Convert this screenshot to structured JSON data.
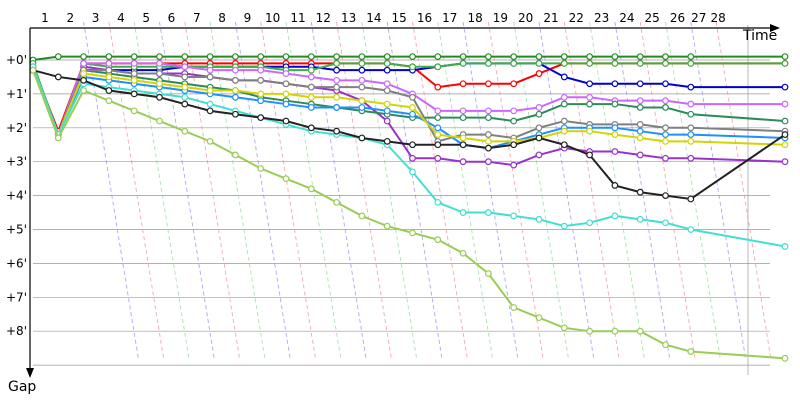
{
  "chart_data": {
    "type": "line",
    "xlabel": "Time",
    "ylabel": "Gap",
    "x_ticks": [
      "1",
      "2",
      "3",
      "4",
      "5",
      "6",
      "7",
      "8",
      "9",
      "10",
      "11",
      "12",
      "13",
      "14",
      "15",
      "16",
      "17",
      "18",
      "19",
      "20",
      "21",
      "22",
      "23",
      "24",
      "25",
      "26",
      "27",
      "28"
    ],
    "y_ticks": [
      "+0'",
      "+1'",
      "+2'",
      "+3'",
      "+4'",
      "+5'",
      "+6'",
      "+7'",
      "+8'"
    ],
    "x_range": [
      1,
      28
    ],
    "y_range": [
      0,
      9
    ],
    "grid": true,
    "colors": {
      "grid": "#9a9a9a",
      "axis": "#000000",
      "pit_lines": [
        "#f08c8c",
        "#8fd98f",
        "#8c8cf0"
      ]
    },
    "series": [
      {
        "color": "#228B22",
        "values": [
          0,
          -0.1,
          -0.1,
          -0.1,
          -0.1,
          -0.1,
          -0.1,
          -0.1,
          -0.1,
          -0.1,
          -0.1,
          -0.1,
          -0.1,
          -0.1,
          -0.1,
          -0.1,
          -0.1,
          -0.1,
          -0.1,
          -0.1,
          -0.1,
          -0.1,
          -0.1,
          -0.1,
          -0.1,
          -0.1,
          -0.1,
          -0.1
        ]
      },
      {
        "color": "#ff0000",
        "values": [
          0.2,
          2.1,
          0.1,
          0.1,
          0.1,
          0.1,
          0.1,
          0.1,
          0.1,
          0.1,
          0.1,
          0.1,
          0.1,
          0.1,
          0.1,
          0.2,
          0.8,
          0.7,
          0.7,
          0.7,
          0.4,
          0.1,
          0.1,
          0.1,
          0.1,
          0.1,
          0.1,
          0.1
        ]
      },
      {
        "color": "#0000cc",
        "values": [
          0.2,
          2.2,
          0.3,
          0.3,
          0.3,
          0.3,
          0.2,
          0.2,
          0.2,
          0.2,
          0.2,
          0.2,
          0.3,
          0.3,
          0.3,
          0.3,
          0.2,
          0.1,
          0.1,
          0.1,
          0.1,
          0.5,
          0.7,
          0.7,
          0.7,
          0.7,
          0.8,
          0.8
        ]
      },
      {
        "color": "#3cb043",
        "values": [
          0.1,
          2.2,
          0.1,
          0.2,
          0.2,
          0.2,
          0.2,
          0.2,
          0.2,
          0.2,
          0.3,
          0.3,
          0.1,
          0.1,
          0.1,
          0.2,
          0.2,
          0.1,
          0.1,
          0.1,
          0.1,
          0.1,
          0.1,
          0.1,
          0.1,
          0.1,
          0.1,
          0.1
        ]
      },
      {
        "color": "#9932cc",
        "values": [
          0.2,
          2.2,
          0.2,
          0.3,
          0.4,
          0.4,
          0.4,
          0.5,
          0.6,
          0.6,
          0.7,
          0.8,
          0.9,
          1.2,
          1.8,
          2.9,
          2.9,
          3.0,
          3.0,
          3.1,
          2.8,
          2.6,
          2.7,
          2.7,
          2.8,
          2.9,
          2.9,
          3.0
        ]
      },
      {
        "color": "#cc66ff",
        "values": [
          0.2,
          2.2,
          0.1,
          0.1,
          0.1,
          0.1,
          0.2,
          0.3,
          0.3,
          0.3,
          0.4,
          0.5,
          0.6,
          0.6,
          0.7,
          1.0,
          1.5,
          1.5,
          1.5,
          1.5,
          1.4,
          1.1,
          1.1,
          1.2,
          1.2,
          1.2,
          1.3,
          1.3
        ]
      },
      {
        "color": "#2e8b57",
        "values": [
          0.2,
          2.2,
          0.3,
          0.4,
          0.5,
          0.6,
          0.7,
          0.8,
          0.9,
          1.1,
          1.2,
          1.3,
          1.4,
          1.5,
          1.6,
          1.7,
          1.7,
          1.7,
          1.7,
          1.8,
          1.6,
          1.3,
          1.3,
          1.3,
          1.4,
          1.4,
          1.6,
          1.8
        ]
      },
      {
        "color": "#808080",
        "values": [
          0.2,
          2.2,
          0.3,
          0.3,
          0.4,
          0.4,
          0.5,
          0.5,
          0.6,
          0.6,
          0.7,
          0.8,
          0.8,
          0.8,
          0.9,
          1.1,
          2.4,
          2.2,
          2.2,
          2.3,
          2.0,
          1.8,
          1.9,
          1.9,
          1.9,
          2.0,
          2.0,
          2.1
        ]
      },
      {
        "color": "#1e90ff",
        "values": [
          0.2,
          2.2,
          0.5,
          0.6,
          0.7,
          0.8,
          0.9,
          1.0,
          1.1,
          1.2,
          1.3,
          1.4,
          1.4,
          1.4,
          1.5,
          1.6,
          2.0,
          2.5,
          2.6,
          2.4,
          2.2,
          2.0,
          2.0,
          2.0,
          2.1,
          2.2,
          2.2,
          2.3
        ]
      },
      {
        "color": "#d4d400",
        "values": [
          0.2,
          2.2,
          0.4,
          0.5,
          0.6,
          0.7,
          0.8,
          0.9,
          0.9,
          1.0,
          1.0,
          1.1,
          1.1,
          1.2,
          1.3,
          1.4,
          2.2,
          2.3,
          2.4,
          2.4,
          2.3,
          2.1,
          2.1,
          2.2,
          2.3,
          2.4,
          2.4,
          2.5
        ]
      },
      {
        "color": "#40e0d0",
        "values": [
          0.2,
          2.2,
          0.7,
          0.8,
          0.9,
          1.0,
          1.1,
          1.3,
          1.5,
          1.7,
          1.9,
          2.1,
          2.2,
          2.3,
          2.5,
          3.3,
          4.2,
          4.5,
          4.5,
          4.6,
          4.7,
          4.9,
          4.8,
          4.6,
          4.7,
          4.8,
          5.0,
          5.5
        ]
      },
      {
        "color": "#222222",
        "values": [
          0.3,
          0.5,
          0.6,
          0.9,
          1.0,
          1.1,
          1.3,
          1.5,
          1.6,
          1.7,
          1.8,
          2.0,
          2.1,
          2.3,
          2.4,
          2.5,
          2.5,
          2.5,
          2.6,
          2.5,
          2.3,
          2.5,
          2.8,
          3.7,
          3.9,
          4.0,
          4.1,
          2.2
        ]
      },
      {
        "color": "#9acd55",
        "values": [
          0.3,
          2.3,
          0.9,
          1.2,
          1.5,
          1.8,
          2.1,
          2.4,
          2.8,
          3.2,
          3.5,
          3.8,
          4.2,
          4.6,
          4.9,
          5.1,
          5.3,
          5.7,
          6.3,
          7.3,
          7.6,
          7.9,
          8.0,
          8.0,
          8.0,
          8.4,
          8.6,
          8.8
        ]
      }
    ]
  }
}
